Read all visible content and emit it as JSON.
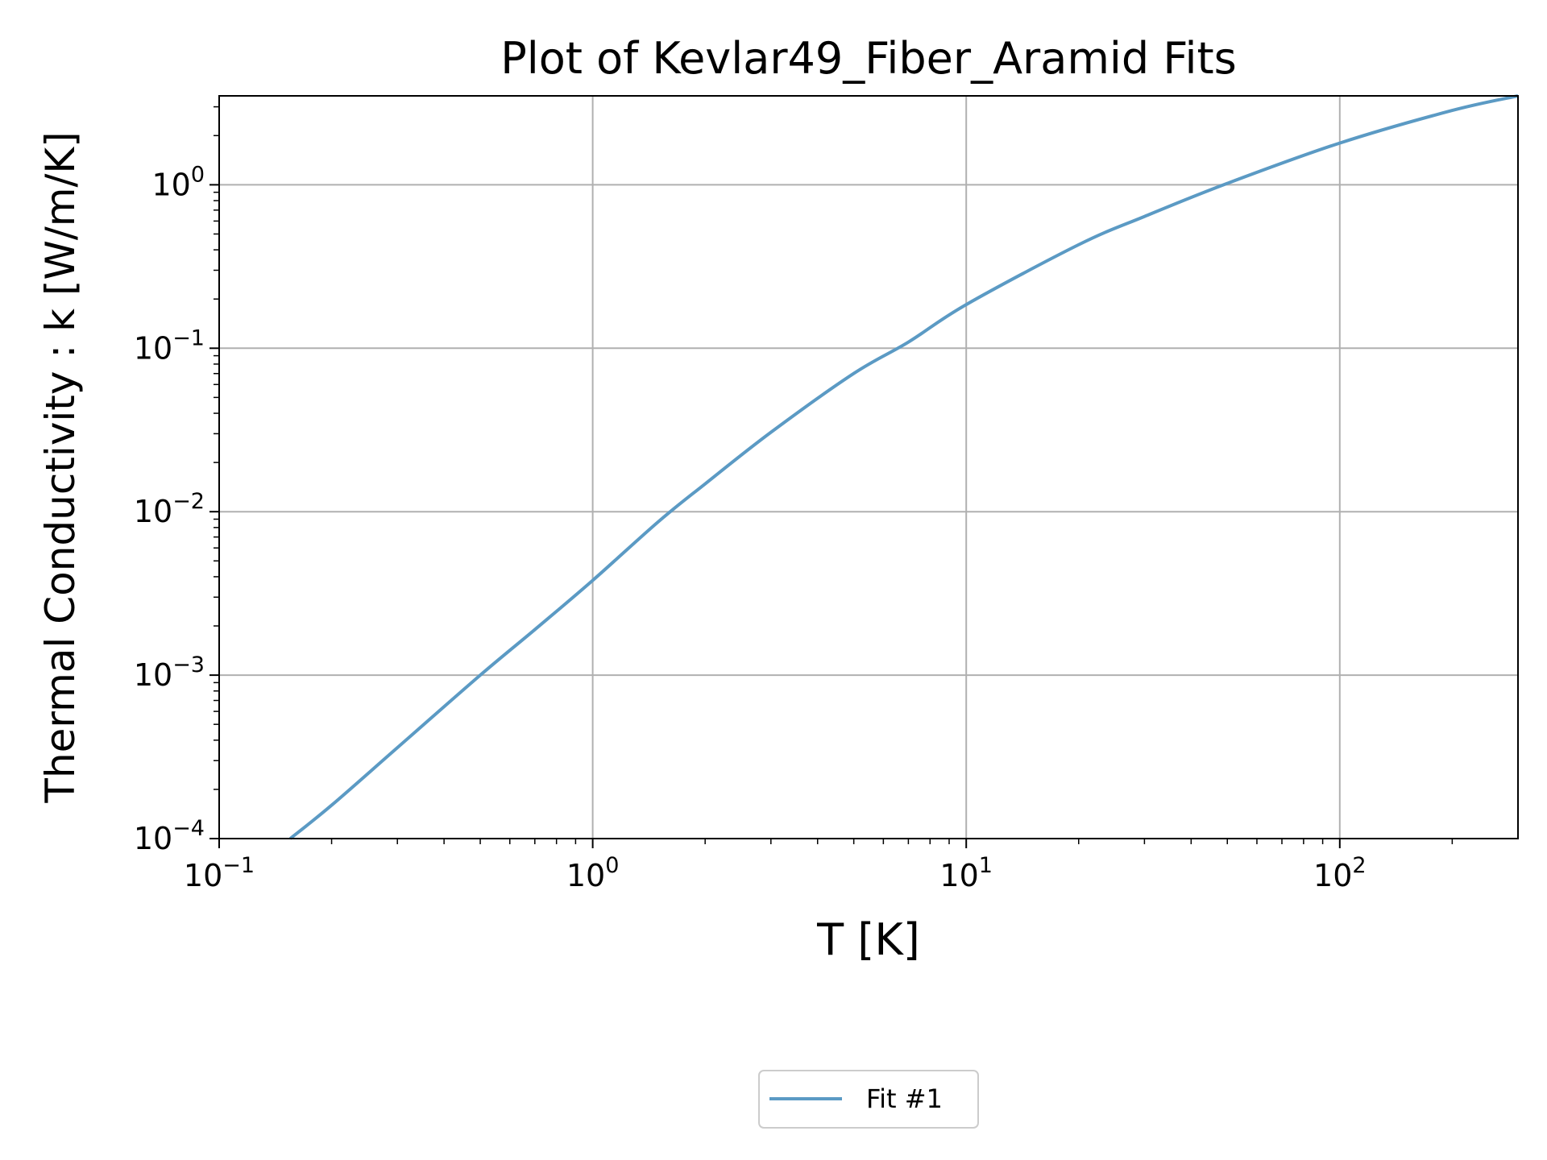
{
  "chart_data": {
    "type": "line",
    "title": "Plot of Kevlar49_Fiber_Aramid Fits",
    "xlabel": "T [K]",
    "ylabel": "Thermal Conductivity : k [W/m/K]",
    "xscale": "log",
    "yscale": "log",
    "xlim": [
      0.1,
      300
    ],
    "ylim": [
      0.0001,
      3.5
    ],
    "grid": true,
    "legend_placement": "below-center",
    "x_ticks": [
      {
        "value": 0.1,
        "base": "10",
        "exp": "−1"
      },
      {
        "value": 1,
        "base": "10",
        "exp": "0"
      },
      {
        "value": 10,
        "base": "10",
        "exp": "1"
      },
      {
        "value": 100,
        "base": "10",
        "exp": "2"
      }
    ],
    "y_ticks": [
      {
        "value": 0.0001,
        "base": "10",
        "exp": "−4"
      },
      {
        "value": 0.001,
        "base": "10",
        "exp": "−3"
      },
      {
        "value": 0.01,
        "base": "10",
        "exp": "−2"
      },
      {
        "value": 0.1,
        "base": "10",
        "exp": "−1"
      },
      {
        "value": 1,
        "base": "10",
        "exp": "0"
      }
    ],
    "series": [
      {
        "name": "Fit #1",
        "color": "#5b9ac4",
        "x": [
          0.155,
          0.2,
          0.3,
          0.5,
          0.7,
          1.0,
          1.5,
          2.0,
          3.0,
          5.0,
          7.0,
          10,
          20,
          30,
          50,
          100,
          200,
          300
        ],
        "y": [
          0.0001,
          0.00016,
          0.00036,
          0.001,
          0.0019,
          0.0038,
          0.0087,
          0.0148,
          0.0306,
          0.0701,
          0.109,
          0.185,
          0.43,
          0.64,
          1.02,
          1.8,
          2.85,
          3.5
        ]
      }
    ]
  }
}
